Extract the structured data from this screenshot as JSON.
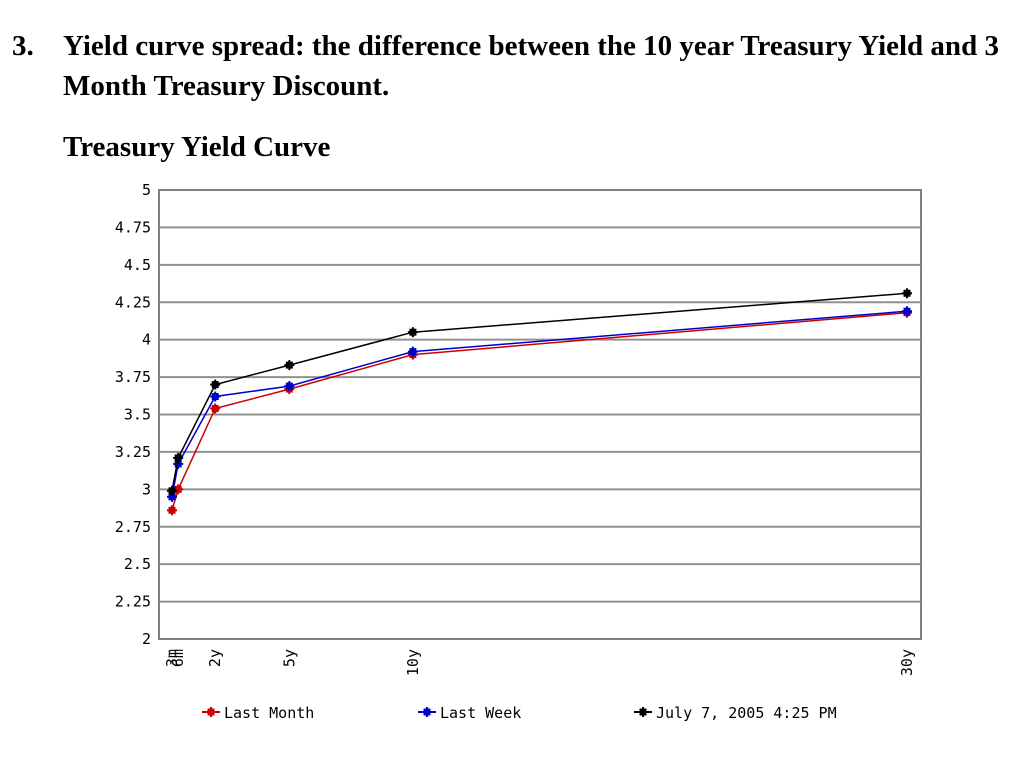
{
  "item": {
    "number": "3.",
    "text": "Yield curve spread: the difference between the 10 year Treasury Yield and 3 Month Treasury Discount."
  },
  "chart_title": "Treasury Yield Curve",
  "chart_data": {
    "type": "line",
    "title": "Treasury Yield Curve",
    "xlabel": "",
    "ylabel": "",
    "categories": [
      "3m",
      "6m",
      "2y",
      "5y",
      "10y",
      "30y"
    ],
    "x_years": [
      0.25,
      0.5,
      2,
      5,
      10,
      30
    ],
    "ylim": [
      2,
      5
    ],
    "yticks": [
      "2",
      "2.25",
      "2.5",
      "2.75",
      "3",
      "3.25",
      "3.5",
      "3.75",
      "4",
      "4.25",
      "4.5",
      "4.75",
      "5"
    ],
    "grid": true,
    "legend_position": "bottom",
    "series": [
      {
        "name": "Last Month",
        "color": "#cc0000",
        "values": [
          2.86,
          3.0,
          3.54,
          3.67,
          3.9,
          4.18
        ]
      },
      {
        "name": "Last Week",
        "color": "#0000cc",
        "values": [
          2.95,
          3.17,
          3.62,
          3.69,
          3.92,
          4.19
        ]
      },
      {
        "name": "July 7, 2005 4:25 PM",
        "color": "#000000",
        "values": [
          2.99,
          3.21,
          3.7,
          3.83,
          4.05,
          4.31
        ]
      }
    ]
  }
}
